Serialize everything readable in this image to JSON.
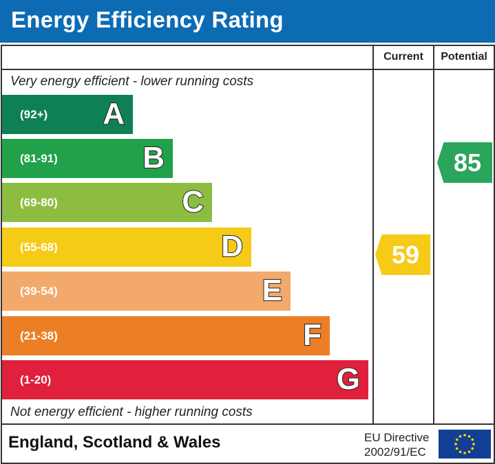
{
  "title": "Energy Efficiency Rating",
  "chart_data": {
    "type": "bar",
    "columns": [
      "Current",
      "Potential"
    ],
    "top_note": "Very energy efficient - lower running costs",
    "bottom_note": "Not energy efficient - higher running costs",
    "bands": [
      {
        "letter": "A",
        "range": "(92+)",
        "color": "#0f8054"
      },
      {
        "letter": "B",
        "range": "(81-91)",
        "color": "#22a14b"
      },
      {
        "letter": "C",
        "range": "(69-80)",
        "color": "#8dbd40"
      },
      {
        "letter": "D",
        "range": "(55-68)",
        "color": "#f5cb18"
      },
      {
        "letter": "E",
        "range": "(39-54)",
        "color": "#f2a96b"
      },
      {
        "letter": "F",
        "range": "(21-38)",
        "color": "#ec7f26"
      },
      {
        "letter": "G",
        "range": "(1-20)",
        "color": "#e0203d"
      }
    ],
    "current": {
      "value": "59",
      "band": "D",
      "color": "#f5cb18"
    },
    "potential": {
      "value": "85",
      "band": "B",
      "color": "#2ba55b"
    }
  },
  "footer": {
    "region": "England, Scotland & Wales",
    "directive_line1": "EU Directive",
    "directive_line2": "2002/91/EC"
  },
  "flag_color": "#123f93"
}
